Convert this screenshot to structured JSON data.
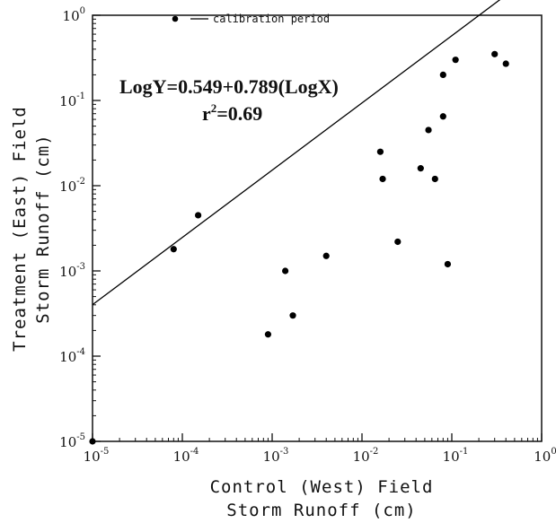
{
  "chart_data": {
    "type": "scatter",
    "scale": "log-log",
    "x_ticks": [
      {
        "value": 1e-05,
        "label": "10",
        "exp": "-5"
      },
      {
        "value": 0.0001,
        "label": "10",
        "exp": "-4"
      },
      {
        "value": 0.001,
        "label": "10",
        "exp": "-3"
      },
      {
        "value": 0.01,
        "label": "10",
        "exp": "-2"
      },
      {
        "value": 0.1,
        "label": "10",
        "exp": "-1"
      },
      {
        "value": 1,
        "label": "10",
        "exp": "0"
      }
    ],
    "y_ticks": [
      {
        "value": 1e-05,
        "label": "10",
        "exp": "-5"
      },
      {
        "value": 0.0001,
        "label": "10",
        "exp": "-4"
      },
      {
        "value": 0.001,
        "label": "10",
        "exp": "-3"
      },
      {
        "value": 0.01,
        "label": "10",
        "exp": "-2"
      },
      {
        "value": 0.1,
        "label": "10",
        "exp": "-1"
      },
      {
        "value": 1,
        "label": "10",
        "exp": "0"
      }
    ],
    "xlim": [
      1e-05,
      1
    ],
    "ylim": [
      1e-05,
      1
    ],
    "xlabel_line1": "Control (West) Field",
    "xlabel_line2": "Storm Runoff (cm)",
    "ylabel_line1": "Treatment (East) Field",
    "ylabel_line2": "Storm Runoff (cm)",
    "legend_text": "calibration period",
    "equation_text": "LogY=0.549+0.789(LogX)",
    "r2_label": "r",
    "r2_sup": "2",
    "r2_value": "=0.69",
    "regression": {
      "intercept": 0.549,
      "slope": 0.789
    },
    "series": [
      {
        "points": [
          {
            "x": 1e-05,
            "y": 1e-05
          },
          {
            "x": 8e-05,
            "y": 0.0018
          },
          {
            "x": 0.00015,
            "y": 0.0045
          },
          {
            "x": 0.0009,
            "y": 0.00018
          },
          {
            "x": 0.0014,
            "y": 0.001
          },
          {
            "x": 0.0017,
            "y": 0.0003
          },
          {
            "x": 0.004,
            "y": 0.0015
          },
          {
            "x": 0.016,
            "y": 0.025
          },
          {
            "x": 0.017,
            "y": 0.012
          },
          {
            "x": 0.025,
            "y": 0.0022
          },
          {
            "x": 0.045,
            "y": 0.016
          },
          {
            "x": 0.055,
            "y": 0.045
          },
          {
            "x": 0.065,
            "y": 0.012
          },
          {
            "x": 0.08,
            "y": 0.065
          },
          {
            "x": 0.08,
            "y": 0.2
          },
          {
            "x": 0.09,
            "y": 0.0012
          },
          {
            "x": 0.11,
            "y": 0.3
          },
          {
            "x": 0.3,
            "y": 0.35
          },
          {
            "x": 0.4,
            "y": 0.27
          }
        ]
      }
    ],
    "colors": {
      "marks": "#000000",
      "background": "#ffffff"
    }
  }
}
